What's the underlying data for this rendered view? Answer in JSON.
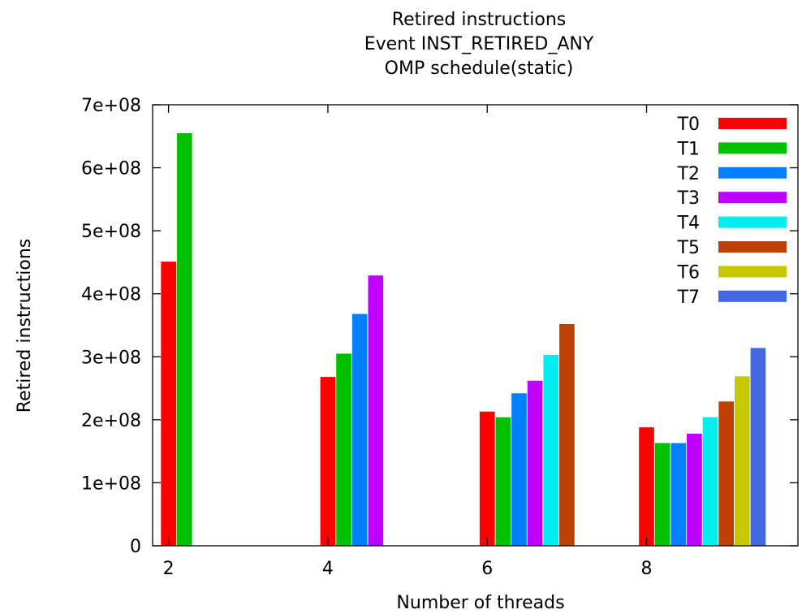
{
  "chart_data": {
    "type": "bar",
    "title": [
      "Retired instructions",
      "Event INST_RETIRED_ANY",
      "OMP schedule(static)"
    ],
    "xlabel": "Number of threads",
    "ylabel": "Retired instructions",
    "categories": [
      "2",
      "4",
      "6",
      "8"
    ],
    "xlim": [
      1.8,
      9.9
    ],
    "ylim": [
      0,
      700000000
    ],
    "yticks": [
      0,
      100000000,
      200000000,
      300000000,
      400000000,
      500000000,
      600000000,
      700000000
    ],
    "ytick_labels": [
      "0",
      "1e+08",
      "2e+08",
      "3e+08",
      "4e+08",
      "5e+08",
      "6e+08",
      "7e+08"
    ],
    "grid": false,
    "legend": "top-right",
    "series": [
      {
        "name": "T0",
        "color": "#ff0000",
        "values": [
          451000000,
          268000000,
          213000000,
          188000000
        ]
      },
      {
        "name": "T1",
        "color": "#00c000",
        "values": [
          655000000,
          305000000,
          204000000,
          163000000
        ]
      },
      {
        "name": "T2",
        "color": "#0080ff",
        "values": [
          null,
          368000000,
          242000000,
          163000000
        ]
      },
      {
        "name": "T3",
        "color": "#c000ff",
        "values": [
          null,
          429000000,
          262000000,
          178000000
        ]
      },
      {
        "name": "T4",
        "color": "#00eeee",
        "values": [
          null,
          null,
          303000000,
          204000000
        ]
      },
      {
        "name": "T5",
        "color": "#c04000",
        "values": [
          null,
          null,
          352000000,
          229000000
        ]
      },
      {
        "name": "T6",
        "color": "#c8c800",
        "values": [
          null,
          null,
          null,
          269000000
        ]
      },
      {
        "name": "T7",
        "color": "#4169e1",
        "values": [
          null,
          null,
          null,
          314000000
        ]
      }
    ]
  }
}
